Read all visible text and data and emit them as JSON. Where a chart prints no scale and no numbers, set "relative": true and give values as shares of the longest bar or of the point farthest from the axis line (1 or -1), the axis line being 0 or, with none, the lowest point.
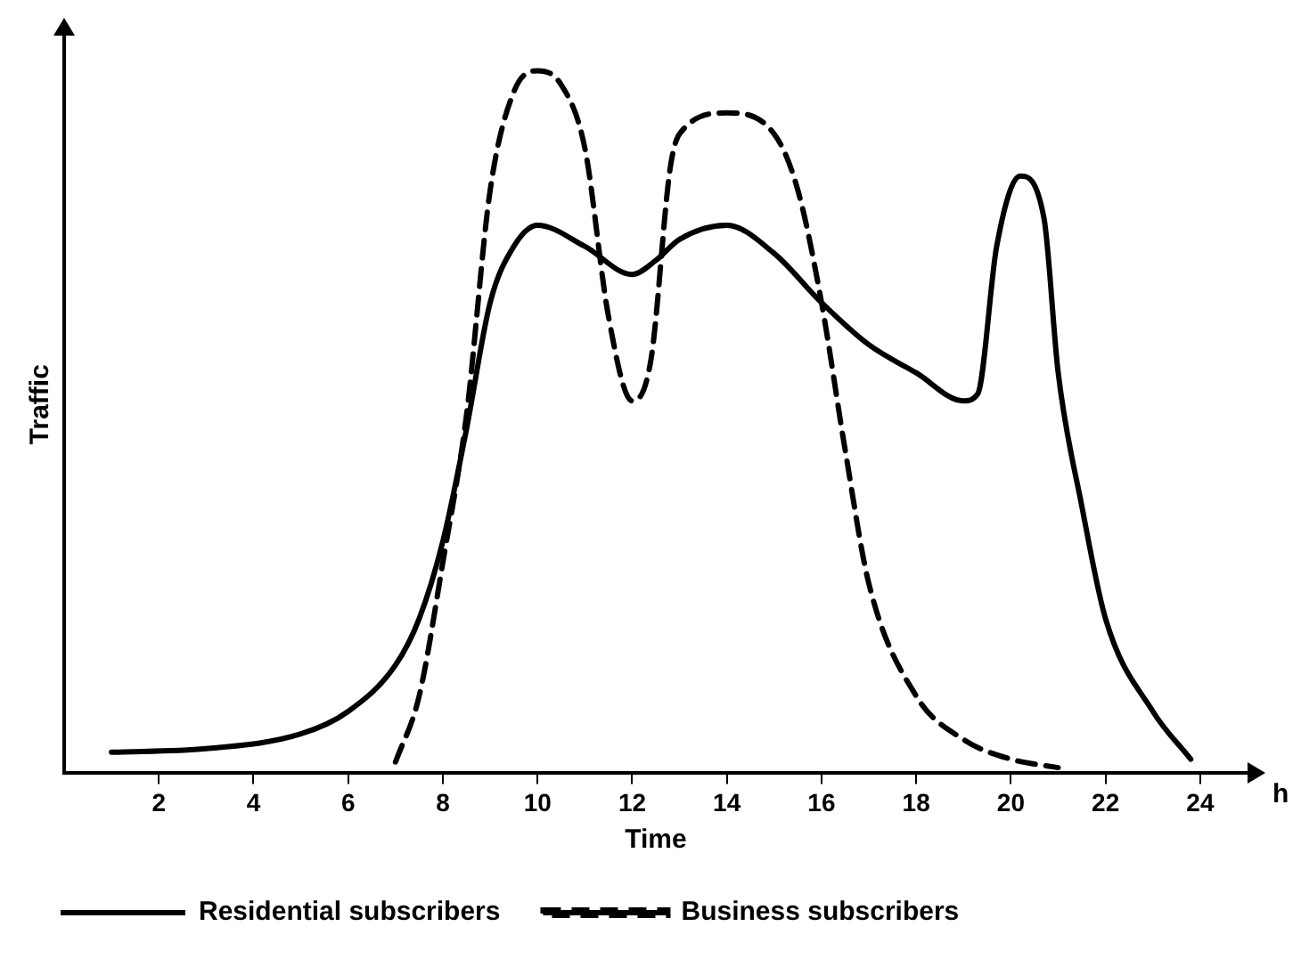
{
  "chart_data": {
    "type": "line",
    "xlabel": "Time",
    "ylabel": "Traffic",
    "relative": true,
    "xlim": [
      0,
      25
    ],
    "xticks": [
      2,
      4,
      6,
      8,
      10,
      12,
      14,
      16,
      18,
      20,
      22,
      24
    ],
    "grid": false,
    "legend": "bottom",
    "marker": "none",
    "annotations": [
      "h"
    ],
    "series": [
      {
        "name": "Residential subscribers",
        "color": "#000000",
        "line_style": "solid",
        "x": [
          1,
          3,
          5,
          6,
          7,
          7.5,
          8,
          8.5,
          9,
          9.5,
          10,
          11,
          12,
          12.5,
          13,
          14,
          15,
          16,
          17,
          18,
          19,
          19.3,
          19.7,
          20.2,
          20.7,
          21,
          21.5,
          22,
          23,
          23.8
        ],
        "values": [
          0.03,
          0.035,
          0.056,
          0.088,
          0.154,
          0.22,
          0.33,
          0.49,
          0.67,
          0.75,
          0.78,
          0.75,
          0.71,
          0.73,
          0.76,
          0.78,
          0.74,
          0.67,
          0.61,
          0.57,
          0.53,
          0.54,
          0.75,
          0.85,
          0.79,
          0.57,
          0.38,
          0.22,
          0.088,
          0.02
        ]
      },
      {
        "name": "Business subscribers",
        "color": "#000000",
        "line_style": "dashed",
        "x": [
          7,
          7.5,
          8,
          8.5,
          9,
          9.5,
          10,
          10.5,
          11,
          11.5,
          12,
          12.4,
          12.8,
          13,
          14,
          15,
          15.5,
          16,
          16.5,
          17,
          18,
          19,
          20,
          21
        ],
        "values": [
          0.016,
          0.11,
          0.3,
          0.51,
          0.83,
          0.97,
          1,
          0.98,
          0.89,
          0.65,
          0.53,
          0.59,
          0.86,
          0.91,
          0.94,
          0.91,
          0.83,
          0.67,
          0.46,
          0.27,
          0.11,
          0.048,
          0.02,
          0.008
        ]
      }
    ]
  }
}
